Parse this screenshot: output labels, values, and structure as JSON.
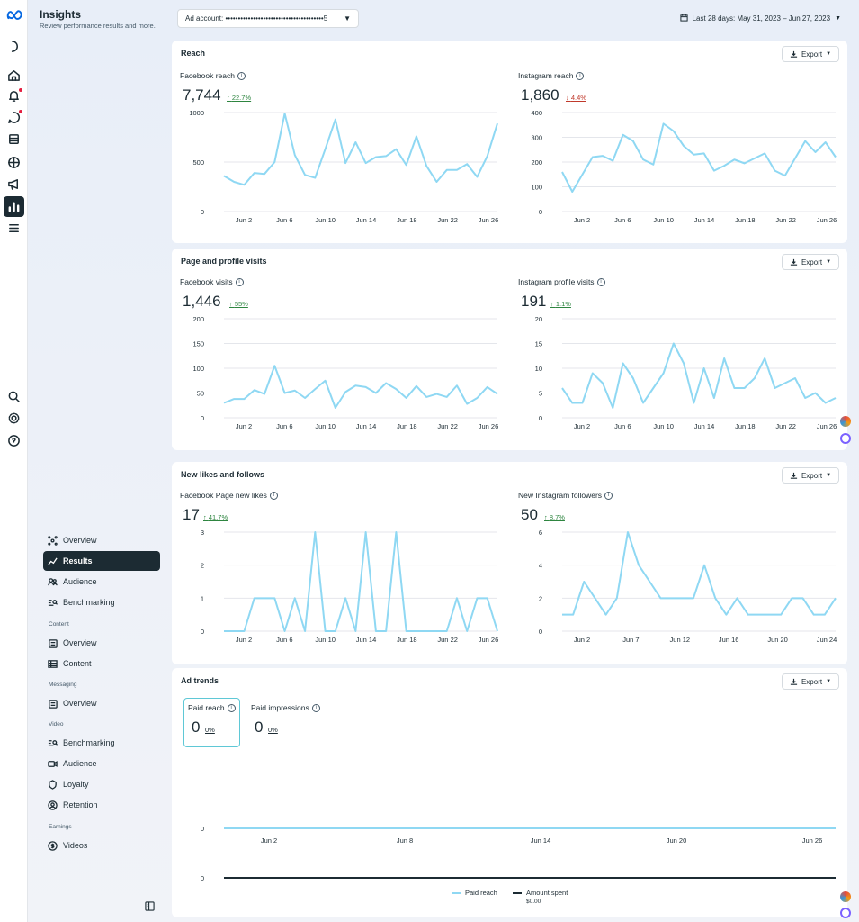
{
  "app": {
    "title": "Insights",
    "subtitle": "Review performance results and more."
  },
  "topbar": {
    "ad_account": "Ad account: •••••••••••••••••••••••••••••••••••••••5",
    "date_range": "Last 28 days: May 31, 2023 – Jun 27, 2023"
  },
  "nav": {
    "items": [
      {
        "label": "Overview"
      },
      {
        "label": "Results"
      },
      {
        "label": "Audience"
      },
      {
        "label": "Benchmarking"
      }
    ],
    "content_section": "Content",
    "content_items": [
      {
        "label": "Overview"
      },
      {
        "label": "Content"
      }
    ],
    "messaging_section": "Messaging",
    "messaging_items": [
      {
        "label": "Overview"
      }
    ],
    "video_section": "Video",
    "video_items": [
      {
        "label": "Benchmarking"
      },
      {
        "label": "Audience"
      },
      {
        "label": "Loyalty"
      },
      {
        "label": "Retention"
      }
    ],
    "earnings_section": "Earnings",
    "earnings_items": [
      {
        "label": "Videos"
      }
    ]
  },
  "export_label": "Export",
  "reach": {
    "title": "Reach",
    "fb_label": "Facebook reach",
    "fb_value": "7,744",
    "fb_delta": "22.7%",
    "ig_label": "Instagram reach",
    "ig_value": "1,860",
    "ig_delta": "4.4%"
  },
  "visits": {
    "title": "Page and profile visits",
    "fb_label": "Facebook visits",
    "fb_value": "1,446",
    "fb_delta": "55%",
    "ig_label": "Instagram profile visits",
    "ig_value": "191",
    "ig_delta": "1.1%"
  },
  "likes": {
    "title": "New likes and follows",
    "fb_label": "Facebook Page new likes",
    "fb_value": "17",
    "fb_delta": "41.7%",
    "ig_label": "New Instagram followers",
    "ig_value": "50",
    "ig_delta": "8.7%"
  },
  "ads": {
    "title": "Ad trends",
    "paid_reach_label": "Paid reach",
    "paid_reach_value": "0",
    "paid_reach_delta": "0%",
    "paid_impr_label": "Paid impressions",
    "paid_impr_value": "0",
    "paid_impr_delta": "0%",
    "legend_paid_reach": "Paid reach",
    "legend_amount": "Amount spent",
    "legend_amount_value": "$0.00"
  },
  "colors": {
    "line": "#8fd8f3",
    "accent": "#1c2b33",
    "up": "#2e8540",
    "down": "#c0392b"
  },
  "chart_data": [
    {
      "type": "line",
      "id": "fb_reach",
      "x": [
        "May 31",
        "Jun 1",
        "Jun 2",
        "Jun 3",
        "Jun 4",
        "Jun 5",
        "Jun 6",
        "Jun 7",
        "Jun 8",
        "Jun 9",
        "Jun 10",
        "Jun 11",
        "Jun 12",
        "Jun 13",
        "Jun 14",
        "Jun 15",
        "Jun 16",
        "Jun 17",
        "Jun 18",
        "Jun 19",
        "Jun 20",
        "Jun 21",
        "Jun 22",
        "Jun 23",
        "Jun 24",
        "Jun 25",
        "Jun 26",
        "Jun 27"
      ],
      "values": [
        360,
        300,
        270,
        390,
        380,
        500,
        990,
        570,
        370,
        340,
        630,
        930,
        490,
        700,
        490,
        550,
        560,
        630,
        470,
        760,
        460,
        300,
        420,
        420,
        480,
        350,
        560,
        890
      ],
      "ylim": [
        0,
        1000
      ],
      "yticks": [
        0,
        500,
        1000
      ],
      "xticks": [
        "Jun 2",
        "Jun 6",
        "Jun 10",
        "Jun 14",
        "Jun 18",
        "Jun 22",
        "Jun 26"
      ]
    },
    {
      "type": "line",
      "id": "ig_reach",
      "x": [
        "May 31",
        "Jun 1",
        "Jun 2",
        "Jun 3",
        "Jun 4",
        "Jun 5",
        "Jun 6",
        "Jun 7",
        "Jun 8",
        "Jun 9",
        "Jun 10",
        "Jun 11",
        "Jun 12",
        "Jun 13",
        "Jun 14",
        "Jun 15",
        "Jun 16",
        "Jun 17",
        "Jun 18",
        "Jun 19",
        "Jun 20",
        "Jun 21",
        "Jun 22",
        "Jun 23",
        "Jun 24",
        "Jun 25",
        "Jun 26",
        "Jun 27"
      ],
      "values": [
        160,
        80,
        150,
        220,
        225,
        205,
        310,
        285,
        210,
        190,
        355,
        325,
        265,
        230,
        235,
        165,
        185,
        210,
        195,
        215,
        235,
        165,
        145,
        215,
        285,
        240,
        280,
        220
      ],
      "ylim": [
        0,
        400
      ],
      "yticks": [
        0,
        100,
        200,
        300,
        400
      ],
      "xticks": [
        "Jun 2",
        "Jun 6",
        "Jun 10",
        "Jun 14",
        "Jun 18",
        "Jun 22",
        "Jun 26"
      ]
    },
    {
      "type": "line",
      "id": "fb_visits",
      "x": [
        "May 31",
        "Jun 1",
        "Jun 2",
        "Jun 3",
        "Jun 4",
        "Jun 5",
        "Jun 6",
        "Jun 7",
        "Jun 8",
        "Jun 9",
        "Jun 10",
        "Jun 11",
        "Jun 12",
        "Jun 13",
        "Jun 14",
        "Jun 15",
        "Jun 16",
        "Jun 17",
        "Jun 18",
        "Jun 19",
        "Jun 20",
        "Jun 21",
        "Jun 22",
        "Jun 23",
        "Jun 24",
        "Jun 25",
        "Jun 26",
        "Jun 27"
      ],
      "values": [
        30,
        38,
        38,
        56,
        48,
        105,
        50,
        55,
        40,
        58,
        75,
        20,
        52,
        65,
        62,
        50,
        70,
        58,
        40,
        64,
        42,
        48,
        42,
        65,
        28,
        40,
        62,
        48
      ],
      "ylim": [
        0,
        200
      ],
      "yticks": [
        0,
        50,
        100,
        150,
        200
      ],
      "xticks": [
        "Jun 2",
        "Jun 6",
        "Jun 10",
        "Jun 14",
        "Jun 18",
        "Jun 22",
        "Jun 26"
      ]
    },
    {
      "type": "line",
      "id": "ig_visits",
      "x": [
        "May 31",
        "Jun 1",
        "Jun 2",
        "Jun 3",
        "Jun 4",
        "Jun 5",
        "Jun 6",
        "Jun 7",
        "Jun 8",
        "Jun 9",
        "Jun 10",
        "Jun 11",
        "Jun 12",
        "Jun 13",
        "Jun 14",
        "Jun 15",
        "Jun 16",
        "Jun 17",
        "Jun 18",
        "Jun 19",
        "Jun 20",
        "Jun 21",
        "Jun 22",
        "Jun 23",
        "Jun 24",
        "Jun 25",
        "Jun 26",
        "Jun 27"
      ],
      "values": [
        6,
        3,
        3,
        9,
        7,
        2,
        11,
        8,
        3,
        6,
        9,
        15,
        11,
        3,
        10,
        4,
        12,
        6,
        6,
        8,
        12,
        6,
        7,
        8,
        4,
        5,
        3,
        4
      ],
      "ylim": [
        0,
        20
      ],
      "yticks": [
        0,
        5,
        10,
        15,
        20
      ],
      "xticks": [
        "Jun 2",
        "Jun 6",
        "Jun 10",
        "Jun 14",
        "Jun 18",
        "Jun 22",
        "Jun 26"
      ]
    },
    {
      "type": "line",
      "id": "fb_likes",
      "x": [
        "May 31",
        "Jun 1",
        "Jun 2",
        "Jun 3",
        "Jun 4",
        "Jun 5",
        "Jun 6",
        "Jun 7",
        "Jun 8",
        "Jun 9",
        "Jun 10",
        "Jun 11",
        "Jun 12",
        "Jun 13",
        "Jun 14",
        "Jun 15",
        "Jun 16",
        "Jun 17",
        "Jun 18",
        "Jun 19",
        "Jun 20",
        "Jun 21",
        "Jun 22",
        "Jun 23",
        "Jun 24",
        "Jun 25",
        "Jun 26",
        "Jun 27"
      ],
      "values": [
        0,
        0,
        0,
        1,
        1,
        1,
        0,
        1,
        0,
        3,
        0,
        0,
        1,
        0,
        3,
        0,
        0,
        3,
        0,
        0,
        0,
        0,
        0,
        1,
        0,
        1,
        1,
        0
      ],
      "ylim": [
        0,
        3
      ],
      "yticks": [
        0,
        1,
        2,
        3
      ],
      "xticks": [
        "Jun 2",
        "Jun 6",
        "Jun 10",
        "Jun 14",
        "Jun 18",
        "Jun 22",
        "Jun 26"
      ]
    },
    {
      "type": "line",
      "id": "ig_followers",
      "x": [
        "May 31",
        "Jun 1",
        "Jun 2",
        "Jun 3",
        "Jun 4",
        "Jun 5",
        "Jun 6",
        "Jun 7",
        "Jun 8",
        "Jun 9",
        "Jun 10",
        "Jun 11",
        "Jun 12",
        "Jun 13",
        "Jun 14",
        "Jun 15",
        "Jun 16",
        "Jun 17",
        "Jun 18",
        "Jun 19",
        "Jun 20",
        "Jun 21",
        "Jun 22",
        "Jun 23",
        "Jun 24",
        "Jun 25"
      ],
      "values": [
        1,
        1,
        3,
        2,
        1,
        2,
        6,
        4,
        3,
        2,
        2,
        2,
        2,
        4,
        2,
        1,
        2,
        1,
        1,
        1,
        1,
        2,
        2,
        1,
        1,
        2
      ],
      "ylim": [
        0,
        6
      ],
      "yticks": [
        0,
        2,
        4,
        6
      ],
      "xticks": [
        "Jun 2",
        "Jun 7",
        "Jun 12",
        "Jun 16",
        "Jun 20",
        "Jun 24"
      ]
    },
    {
      "type": "line",
      "id": "paid_reach",
      "x": [
        "May 31",
        "Jun 27"
      ],
      "values": [
        0,
        0
      ],
      "ylim": [
        0,
        1
      ],
      "yticks": [
        0
      ],
      "xticks": [
        "Jun 2",
        "Jun 8",
        "Jun 14",
        "Jun 20",
        "Jun 26"
      ]
    },
    {
      "type": "line",
      "id": "amount_spent",
      "x": [
        "May 31",
        "Jun 27"
      ],
      "values": [
        0,
        0
      ],
      "ylim": [
        0,
        1
      ],
      "yticks": [
        0
      ],
      "xticks": []
    }
  ]
}
